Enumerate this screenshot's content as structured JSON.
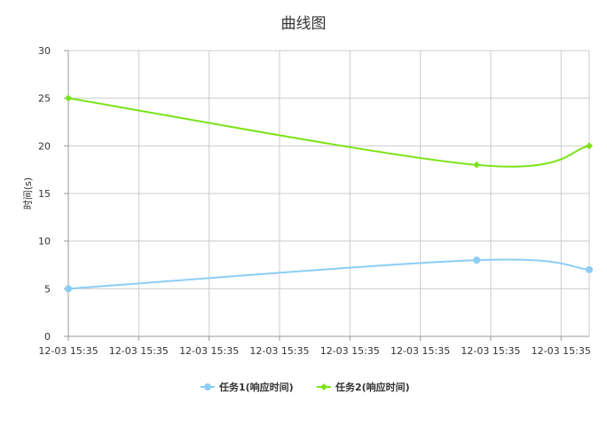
{
  "chart_data": {
    "type": "line",
    "title": "曲线图",
    "ylabel": "时间(s)",
    "xlabel": "",
    "x_ticks": [
      "12-03 15:35",
      "12-03 15:35",
      "12-03 15:35",
      "12-03 15:35",
      "12-03 15:35",
      "12-03 15:35",
      "12-03 15:35",
      "12-03 15:35"
    ],
    "y_ticks": [
      0,
      5,
      10,
      15,
      20,
      25,
      30
    ],
    "ylim": [
      0,
      30
    ],
    "grid": true,
    "legend_position": "bottom",
    "series": [
      {
        "name": "任务1(响应时间)",
        "color": "#8ccdf5",
        "marker": "circle",
        "points": [
          {
            "x": 0,
            "y": 5
          },
          {
            "x": 5.8,
            "y": 8
          },
          {
            "x": 7.4,
            "y": 7
          }
        ]
      },
      {
        "name": "任务2(响应时间)",
        "color": "#7ce31a",
        "marker": "diamond",
        "points": [
          {
            "x": 0,
            "y": 25
          },
          {
            "x": 5.8,
            "y": 18
          },
          {
            "x": 7.4,
            "y": 20
          }
        ]
      }
    ]
  }
}
